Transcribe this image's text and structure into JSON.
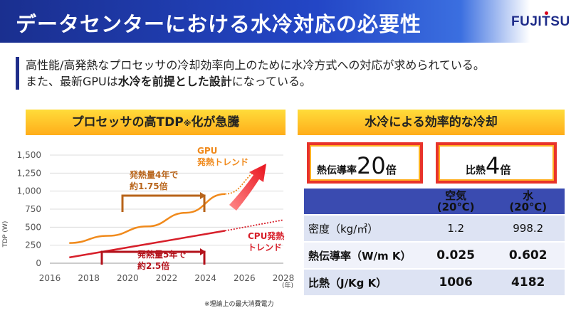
{
  "header": {
    "title": "データセンターにおける水冷対応の必要性",
    "logo": "FUJITSU"
  },
  "intro": {
    "line1": "高性能/高発熱なプロセッサの冷却効率向上のために水冷方式への対応が求められている。",
    "line2_pre": "また、最新GPUは",
    "line2_bold": "水冷を前提とした設計",
    "line2_post": "になっている。"
  },
  "left_banner": {
    "text_pre": "プロセッサの高TDP",
    "text_sub": "※",
    "text_post": "化が急騰"
  },
  "right_banner": {
    "text": "水冷による効率的な冷却"
  },
  "chart_data": {
    "type": "line",
    "x": [
      2017,
      2019,
      2021,
      2023,
      2025,
      2027
    ],
    "series": [
      {
        "name": "GPU発熱トレンド",
        "color": "#f08a1c",
        "values": [
          280,
          380,
          510,
          700,
          960,
          1300
        ]
      },
      {
        "name": "CPU発熱トレンド",
        "color": "#d71f2a",
        "values": [
          80,
          175,
          265,
          360,
          450,
          540
        ]
      }
    ],
    "yticks": [
      "1,500",
      "1,250",
      "1,000",
      "750",
      "500",
      "250",
      "0"
    ],
    "xticks": [
      "2016",
      "2018",
      "2020",
      "2022",
      "2024",
      "2026",
      "2028"
    ],
    "ylabel": "TDP (W)",
    "xunit": "(年)",
    "xlim": [
      2016,
      2028
    ],
    "ylim": [
      0,
      1500
    ],
    "labels": {
      "gpu_line1": "GPU",
      "gpu_line2": "発熱トレンド",
      "cpu_line1": "CPU発熱",
      "cpu_line2": "トレンド",
      "gpu_ann_line1": "発熱量4年で",
      "gpu_ann_line2": "約1.75倍",
      "cpu_ann_line1": "発熱量5年で",
      "cpu_ann_line2": "約2.5倍"
    }
  },
  "highlights": [
    {
      "label": "熱伝導率",
      "value": "20",
      "unit": "倍"
    },
    {
      "label": "比熱",
      "value": "4",
      "unit": "倍"
    }
  ],
  "table": {
    "headers": [
      {
        "line1": "空気",
        "line2": "(20℃)"
      },
      {
        "line1": "水",
        "line2": "(20℃)"
      }
    ],
    "rows": [
      {
        "label": "密度（kg/㎥）",
        "air": "1.2",
        "water": "998.2",
        "bold": false
      },
      {
        "label": "熱伝導率（W/m K）",
        "air": "0.025",
        "water": "0.602",
        "bold": true
      },
      {
        "label": "比熱（J/Kg K）",
        "air": "1006",
        "water": "4182",
        "bold": true
      }
    ]
  },
  "footnote": "※理論上の最大消費電力"
}
